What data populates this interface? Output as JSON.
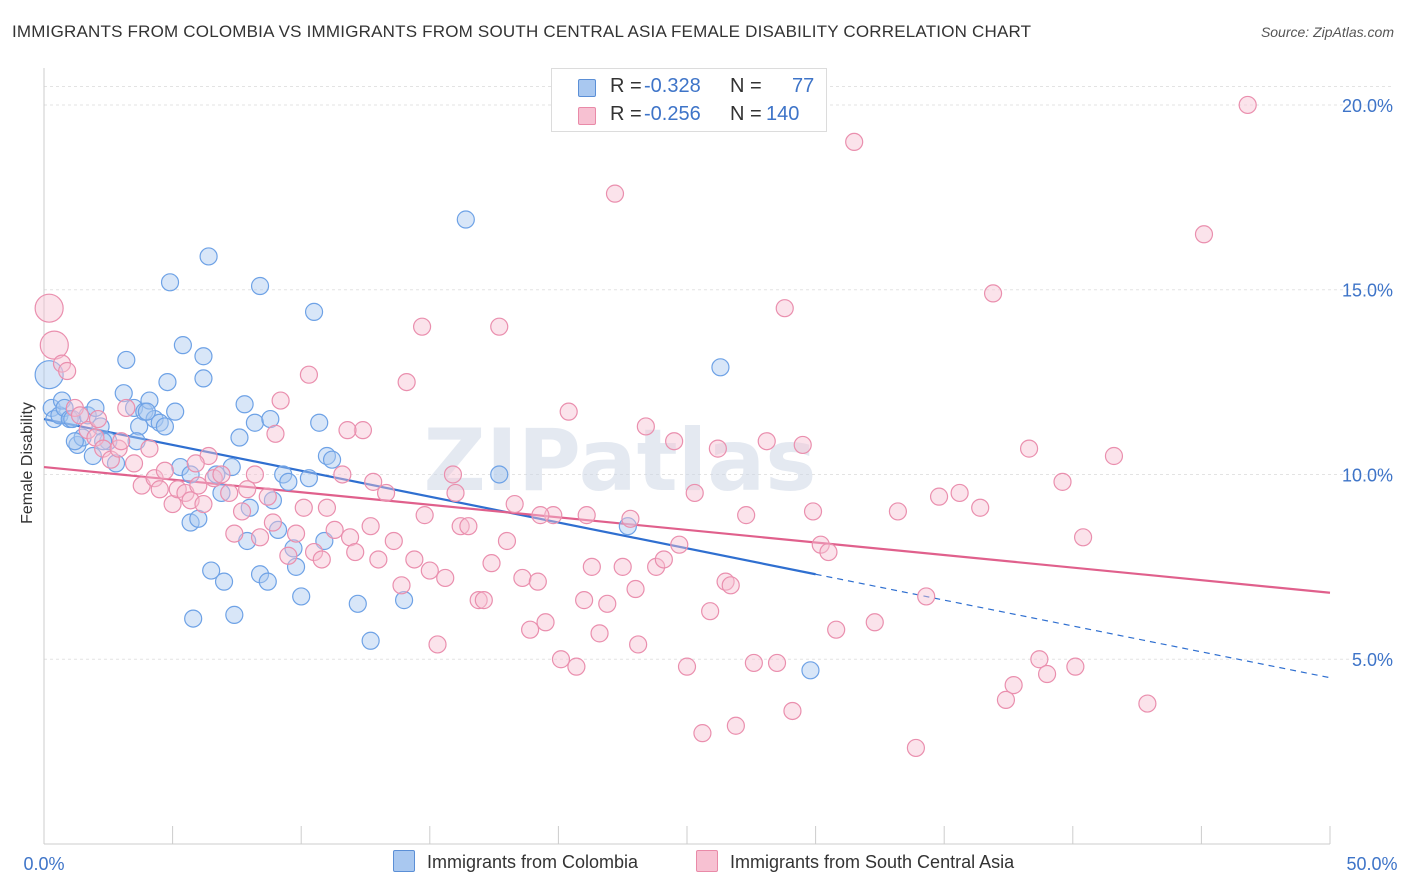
{
  "title": "IMMIGRANTS FROM COLOMBIA VS IMMIGRANTS FROM SOUTH CENTRAL ASIA FEMALE DISABILITY CORRELATION CHART",
  "source": "Source: ZipAtlas.com",
  "watermark": "ZIPatlas",
  "legend": {
    "r_label": "R =",
    "n_label": "N =",
    "rows": [
      {
        "r": "-0.328",
        "n": "77",
        "color": "#a9c8f0",
        "border": "#5b8fd6"
      },
      {
        "r": "-0.256",
        "n": "140",
        "color": "#f7c1d2",
        "border": "#e98aa8"
      }
    ]
  },
  "bottom_legend": [
    {
      "label": "Immigrants from Colombia",
      "color": "#a9c8f0",
      "border": "#5b8fd6"
    },
    {
      "label": "Immigrants from South Central Asia",
      "color": "#f7c1d2",
      "border": "#e98aa8"
    }
  ],
  "chart_data": {
    "type": "scatter",
    "title": "IMMIGRANTS FROM COLOMBIA VS IMMIGRANTS FROM SOUTH CENTRAL ASIA FEMALE DISABILITY CORRELATION CHART",
    "xlabel": "",
    "ylabel": "Female Disability",
    "xlim": [
      0,
      50
    ],
    "ylim": [
      0,
      21
    ],
    "x_tick_labels": [
      "0.0%",
      "50.0%"
    ],
    "y_ticks": [
      5,
      10,
      15,
      20
    ],
    "y_tick_labels": [
      "5.0%",
      "10.0%",
      "15.0%",
      "20.0%"
    ],
    "grid": true,
    "legend_position": "top-center",
    "series": [
      {
        "name": "Immigrants from Colombia",
        "color": "#6ea2e6",
        "fill": "#a9c8f0",
        "trend": {
          "x0": 0,
          "y0": 11.5,
          "x1": 30,
          "y1": 7.3,
          "dashed_to_x": 50,
          "dashed_to_y": 4.5
        },
        "points": [
          [
            0.2,
            12.7
          ],
          [
            0.3,
            11.8
          ],
          [
            0.4,
            11.5
          ],
          [
            0.6,
            11.6
          ],
          [
            0.7,
            12.0
          ],
          [
            0.8,
            11.8
          ],
          [
            1.0,
            11.5
          ],
          [
            1.1,
            11.5
          ],
          [
            1.3,
            10.8
          ],
          [
            1.5,
            11.0
          ],
          [
            1.7,
            11.6
          ],
          [
            1.9,
            10.5
          ],
          [
            2.0,
            11.8
          ],
          [
            2.2,
            11.3
          ],
          [
            2.5,
            10.9
          ],
          [
            2.8,
            10.3
          ],
          [
            3.1,
            12.2
          ],
          [
            3.2,
            13.1
          ],
          [
            3.5,
            11.8
          ],
          [
            3.7,
            11.3
          ],
          [
            3.9,
            11.7
          ],
          [
            4.1,
            12.0
          ],
          [
            4.3,
            11.5
          ],
          [
            4.5,
            11.4
          ],
          [
            4.7,
            11.3
          ],
          [
            4.8,
            12.5
          ],
          [
            4.9,
            15.2
          ],
          [
            5.1,
            11.7
          ],
          [
            5.3,
            10.2
          ],
          [
            5.4,
            13.5
          ],
          [
            5.7,
            10.0
          ],
          [
            5.7,
            8.7
          ],
          [
            5.8,
            6.1
          ],
          [
            6.0,
            8.8
          ],
          [
            6.2,
            13.2
          ],
          [
            6.2,
            12.6
          ],
          [
            6.4,
            15.9
          ],
          [
            6.5,
            7.4
          ],
          [
            6.7,
            10.0
          ],
          [
            7.0,
            7.1
          ],
          [
            7.3,
            10.2
          ],
          [
            7.4,
            6.2
          ],
          [
            7.6,
            11.0
          ],
          [
            7.8,
            11.9
          ],
          [
            7.9,
            8.2
          ],
          [
            8.0,
            9.1
          ],
          [
            8.2,
            11.4
          ],
          [
            8.4,
            15.1
          ],
          [
            8.4,
            7.3
          ],
          [
            8.7,
            7.1
          ],
          [
            8.8,
            11.5
          ],
          [
            9.1,
            8.5
          ],
          [
            9.3,
            10.0
          ],
          [
            9.5,
            9.8
          ],
          [
            9.7,
            8.0
          ],
          [
            9.8,
            7.5
          ],
          [
            10.0,
            6.7
          ],
          [
            10.3,
            9.9
          ],
          [
            10.5,
            14.4
          ],
          [
            10.7,
            11.4
          ],
          [
            10.9,
            8.2
          ],
          [
            11.0,
            10.5
          ],
          [
            11.2,
            10.4
          ],
          [
            12.2,
            6.5
          ],
          [
            12.7,
            5.5
          ],
          [
            14.0,
            6.6
          ],
          [
            16.4,
            16.9
          ],
          [
            17.7,
            10.0
          ],
          [
            22.7,
            8.6
          ],
          [
            26.3,
            12.9
          ],
          [
            29.8,
            4.7
          ],
          [
            3.6,
            10.9
          ],
          [
            4.0,
            11.7
          ],
          [
            2.3,
            10.9
          ],
          [
            1.2,
            10.9
          ],
          [
            6.9,
            9.5
          ],
          [
            8.9,
            9.3
          ]
        ]
      },
      {
        "name": "Immigrants from South Central Asia",
        "color": "#ea8fae",
        "fill": "#f7c1d2",
        "trend": {
          "x0": 0,
          "y0": 10.2,
          "x1": 50,
          "y1": 6.8
        },
        "points": [
          [
            0.2,
            14.5
          ],
          [
            0.4,
            13.5
          ],
          [
            0.7,
            13.0
          ],
          [
            0.9,
            12.8
          ],
          [
            1.2,
            11.8
          ],
          [
            1.4,
            11.6
          ],
          [
            1.7,
            11.2
          ],
          [
            2.0,
            11.0
          ],
          [
            2.3,
            10.7
          ],
          [
            2.6,
            10.4
          ],
          [
            2.9,
            10.7
          ],
          [
            3.2,
            11.8
          ],
          [
            3.5,
            10.3
          ],
          [
            3.8,
            9.7
          ],
          [
            4.1,
            10.7
          ],
          [
            4.3,
            9.9
          ],
          [
            4.5,
            9.6
          ],
          [
            4.7,
            10.1
          ],
          [
            5.0,
            9.2
          ],
          [
            5.2,
            9.6
          ],
          [
            5.5,
            9.5
          ],
          [
            5.7,
            9.3
          ],
          [
            6.0,
            9.7
          ],
          [
            6.2,
            9.2
          ],
          [
            6.4,
            10.5
          ],
          [
            6.6,
            9.9
          ],
          [
            6.9,
            10.0
          ],
          [
            7.2,
            9.5
          ],
          [
            7.4,
            8.4
          ],
          [
            7.7,
            9.0
          ],
          [
            7.9,
            9.6
          ],
          [
            8.2,
            10.0
          ],
          [
            8.4,
            8.3
          ],
          [
            8.7,
            9.4
          ],
          [
            8.9,
            8.7
          ],
          [
            9.2,
            12.0
          ],
          [
            9.5,
            7.8
          ],
          [
            9.8,
            8.4
          ],
          [
            10.1,
            9.1
          ],
          [
            10.3,
            12.7
          ],
          [
            10.5,
            7.9
          ],
          [
            10.8,
            7.7
          ],
          [
            11.0,
            9.1
          ],
          [
            11.3,
            8.5
          ],
          [
            11.6,
            10.0
          ],
          [
            11.9,
            8.3
          ],
          [
            12.1,
            7.9
          ],
          [
            12.4,
            11.2
          ],
          [
            12.7,
            8.6
          ],
          [
            13.0,
            7.7
          ],
          [
            13.3,
            9.5
          ],
          [
            13.6,
            8.2
          ],
          [
            13.9,
            7.0
          ],
          [
            14.1,
            12.5
          ],
          [
            14.4,
            7.7
          ],
          [
            14.7,
            14.0
          ],
          [
            15.0,
            7.4
          ],
          [
            15.3,
            5.4
          ],
          [
            15.6,
            7.2
          ],
          [
            15.9,
            10.0
          ],
          [
            16.2,
            8.6
          ],
          [
            16.5,
            8.6
          ],
          [
            16.9,
            6.6
          ],
          [
            17.1,
            6.6
          ],
          [
            17.4,
            7.6
          ],
          [
            17.7,
            14.0
          ],
          [
            18.0,
            8.2
          ],
          [
            18.3,
            9.2
          ],
          [
            18.6,
            7.2
          ],
          [
            18.9,
            5.8
          ],
          [
            19.2,
            7.1
          ],
          [
            19.5,
            6.0
          ],
          [
            19.8,
            8.9
          ],
          [
            20.1,
            5.0
          ],
          [
            20.4,
            11.7
          ],
          [
            20.7,
            4.8
          ],
          [
            21.0,
            6.6
          ],
          [
            21.3,
            7.5
          ],
          [
            21.6,
            5.7
          ],
          [
            21.9,
            6.5
          ],
          [
            22.2,
            17.6
          ],
          [
            22.5,
            7.5
          ],
          [
            22.8,
            8.8
          ],
          [
            23.1,
            5.4
          ],
          [
            23.4,
            11.3
          ],
          [
            23.8,
            7.5
          ],
          [
            24.1,
            7.7
          ],
          [
            24.5,
            10.9
          ],
          [
            25.0,
            4.8
          ],
          [
            25.3,
            9.5
          ],
          [
            25.6,
            3.0
          ],
          [
            25.9,
            6.3
          ],
          [
            26.2,
            10.7
          ],
          [
            26.5,
            7.1
          ],
          [
            26.7,
            7.0
          ],
          [
            26.9,
            3.2
          ],
          [
            27.3,
            8.9
          ],
          [
            27.6,
            4.9
          ],
          [
            28.1,
            10.9
          ],
          [
            28.5,
            4.9
          ],
          [
            28.8,
            14.5
          ],
          [
            29.1,
            3.6
          ],
          [
            29.5,
            10.8
          ],
          [
            29.9,
            9.0
          ],
          [
            30.2,
            8.1
          ],
          [
            30.8,
            5.8
          ],
          [
            31.5,
            19.0
          ],
          [
            32.3,
            6.0
          ],
          [
            33.2,
            9.0
          ],
          [
            33.9,
            2.6
          ],
          [
            34.3,
            6.7
          ],
          [
            34.8,
            9.4
          ],
          [
            35.6,
            9.5
          ],
          [
            36.4,
            9.1
          ],
          [
            36.9,
            14.9
          ],
          [
            37.4,
            3.9
          ],
          [
            37.7,
            4.3
          ],
          [
            38.3,
            10.7
          ],
          [
            38.7,
            5.0
          ],
          [
            39.0,
            4.6
          ],
          [
            39.6,
            9.8
          ],
          [
            40.1,
            4.8
          ],
          [
            40.4,
            8.3
          ],
          [
            41.6,
            10.5
          ],
          [
            42.9,
            3.8
          ],
          [
            45.1,
            16.5
          ],
          [
            46.8,
            20.0
          ],
          [
            19.3,
            8.9
          ],
          [
            23.0,
            6.9
          ],
          [
            12.8,
            9.8
          ],
          [
            16.0,
            9.5
          ],
          [
            2.1,
            11.5
          ],
          [
            3.0,
            10.9
          ],
          [
            14.8,
            8.9
          ],
          [
            21.1,
            8.9
          ],
          [
            24.7,
            8.1
          ],
          [
            30.5,
            7.9
          ],
          [
            9.0,
            11.1
          ],
          [
            11.8,
            11.2
          ],
          [
            5.9,
            10.3
          ]
        ]
      }
    ]
  }
}
